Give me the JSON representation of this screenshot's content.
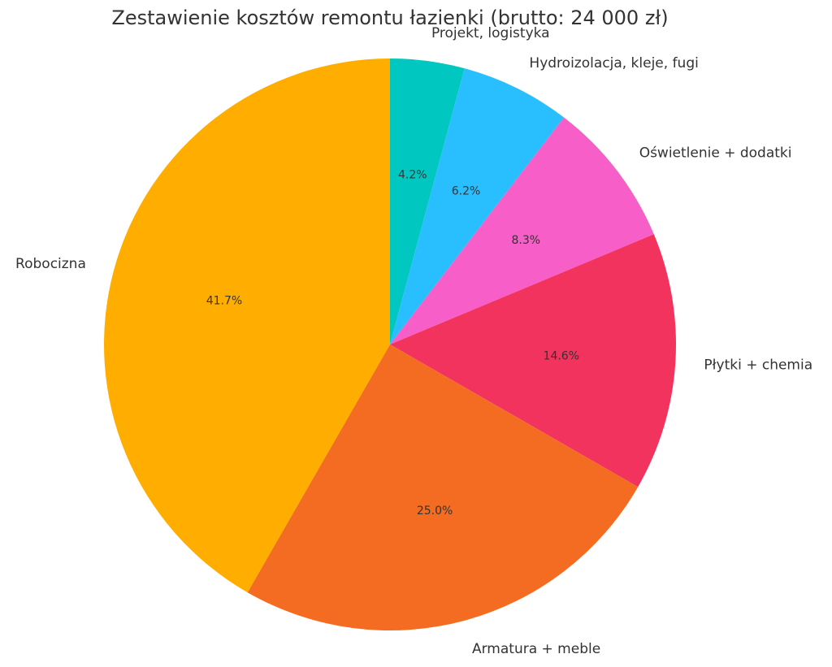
{
  "chart_data": {
    "type": "pie",
    "title": "Zestawienie kosztów remontu łazienki (brutto: 24 000 zł)",
    "categories": [
      "Projekt, logistyka",
      "Hydroizolacja, kleje, fugi",
      "Oświetlenie + dodatki",
      "Płytki + chemia",
      "Armatura + meble",
      "Robocizna"
    ],
    "values": [
      4.2,
      6.2,
      8.3,
      14.6,
      25.0,
      41.7
    ],
    "value_labels": [
      "4.2%",
      "6.2%",
      "8.3%",
      "14.6%",
      "25.0%",
      "41.7%"
    ],
    "colors": [
      "#00c8c0",
      "#29bfff",
      "#f75ec8",
      "#f2335d",
      "#f36c21",
      "#ffae00"
    ],
    "start_angle_deg": 90,
    "direction": "clockwise",
    "legend": "none"
  }
}
